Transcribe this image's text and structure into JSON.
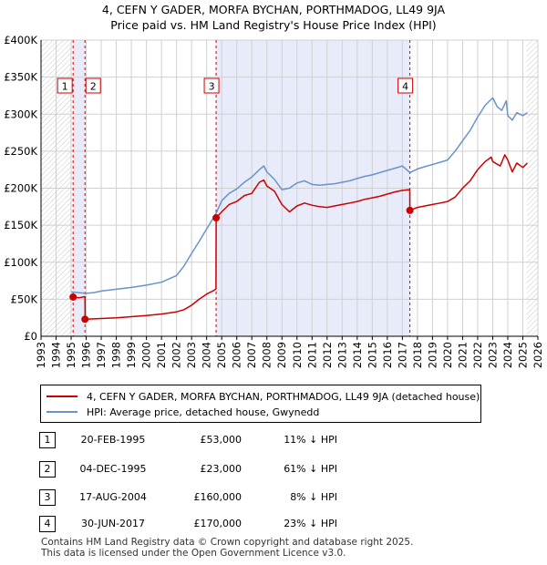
{
  "header": {
    "title": "4, CEFN Y GADER, MORFA BYCHAN, PORTHMADOG, LL49 9JA",
    "subtitle": "Price paid vs. HM Land Registry's House Price Index (HPI)"
  },
  "colors": {
    "property": "#cc0000",
    "hpi": "#6a93c9",
    "shade": "#e8ecfa",
    "grid": "#d0d0d0"
  },
  "chart_data": {
    "type": "line",
    "xlim": [
      1993,
      2026
    ],
    "ylim": [
      0,
      400000
    ],
    "x_ticks": [
      "1993",
      "1994",
      "1995",
      "1996",
      "1997",
      "1998",
      "1999",
      "2000",
      "2001",
      "2002",
      "2003",
      "2004",
      "2005",
      "2006",
      "2007",
      "2008",
      "2009",
      "2010",
      "2011",
      "2012",
      "2013",
      "2014",
      "2015",
      "2016",
      "2017",
      "2018",
      "2019",
      "2020",
      "2021",
      "2022",
      "2023",
      "2024",
      "2025",
      "2026"
    ],
    "y_ticks": [
      {
        "value": 0,
        "label": "£0"
      },
      {
        "value": 50000,
        "label": "£50K"
      },
      {
        "value": 100000,
        "label": "£100K"
      },
      {
        "value": 150000,
        "label": "£150K"
      },
      {
        "value": 200000,
        "label": "£200K"
      },
      {
        "value": 250000,
        "label": "£250K"
      },
      {
        "value": 300000,
        "label": "£300K"
      },
      {
        "value": 350000,
        "label": "£350K"
      },
      {
        "value": 400000,
        "label": "£400K"
      }
    ],
    "shaded_ranges": [
      [
        1995.13,
        1995.92
      ],
      [
        2004.63,
        2017.5
      ]
    ],
    "series": [
      {
        "name": "4, CEFN Y GADER, MORFA BYCHAN, PORTHMADOG, LL49 9JA (detached house)",
        "color": "#cc0000",
        "points": [
          [
            1995.13,
            53000
          ],
          [
            1995.5,
            52000
          ],
          [
            1995.92,
            53500
          ],
          [
            1995.93,
            23000
          ],
          [
            1996.5,
            23500
          ],
          [
            1997,
            24000
          ],
          [
            1998,
            25000
          ],
          [
            1999,
            26500
          ],
          [
            2000,
            28000
          ],
          [
            2001,
            30000
          ],
          [
            2002,
            33000
          ],
          [
            2002.5,
            36000
          ],
          [
            2003,
            42000
          ],
          [
            2003.5,
            50000
          ],
          [
            2004,
            57000
          ],
          [
            2004.5,
            62000
          ],
          [
            2004.62,
            64000
          ],
          [
            2004.63,
            160000
          ],
          [
            2005,
            168000
          ],
          [
            2005.5,
            178000
          ],
          [
            2006,
            182000
          ],
          [
            2006.5,
            190000
          ],
          [
            2007,
            193000
          ],
          [
            2007.5,
            208000
          ],
          [
            2007.8,
            211000
          ],
          [
            2008,
            203000
          ],
          [
            2008.5,
            196000
          ],
          [
            2009,
            178000
          ],
          [
            2009.5,
            168000
          ],
          [
            2010,
            176000
          ],
          [
            2010.5,
            180000
          ],
          [
            2011,
            177000
          ],
          [
            2011.5,
            175000
          ],
          [
            2012,
            174000
          ],
          [
            2012.5,
            176000
          ],
          [
            2013,
            178000
          ],
          [
            2013.5,
            180000
          ],
          [
            2014,
            182000
          ],
          [
            2014.5,
            185000
          ],
          [
            2015,
            187000
          ],
          [
            2015.5,
            189000
          ],
          [
            2016,
            192000
          ],
          [
            2016.5,
            195000
          ],
          [
            2017,
            197000
          ],
          [
            2017.49,
            198000
          ],
          [
            2017.5,
            170000
          ],
          [
            2018,
            174000
          ],
          [
            2018.5,
            176000
          ],
          [
            2019,
            178000
          ],
          [
            2019.5,
            180000
          ],
          [
            2020,
            182000
          ],
          [
            2020.5,
            188000
          ],
          [
            2021,
            200000
          ],
          [
            2021.5,
            210000
          ],
          [
            2022,
            225000
          ],
          [
            2022.5,
            236000
          ],
          [
            2022.9,
            242000
          ],
          [
            2023,
            236000
          ],
          [
            2023.5,
            230000
          ],
          [
            2023.8,
            245000
          ],
          [
            2024,
            238000
          ],
          [
            2024.3,
            222000
          ],
          [
            2024.6,
            234000
          ],
          [
            2025,
            228000
          ],
          [
            2025.3,
            234000
          ]
        ]
      },
      {
        "name": "HPI: Average price, detached house, Gwynedd",
        "color": "#6a93c9",
        "points": [
          [
            1995,
            60000
          ],
          [
            1995.5,
            59000
          ],
          [
            1996,
            58000
          ],
          [
            1996.5,
            59000
          ],
          [
            1997,
            61000
          ],
          [
            1998,
            63500
          ],
          [
            1999,
            66000
          ],
          [
            2000,
            69000
          ],
          [
            2001,
            73000
          ],
          [
            2002,
            82000
          ],
          [
            2002.5,
            95000
          ],
          [
            2003,
            112000
          ],
          [
            2003.5,
            128000
          ],
          [
            2004,
            145000
          ],
          [
            2004.6,
            165000
          ],
          [
            2005,
            183000
          ],
          [
            2005.5,
            193000
          ],
          [
            2006,
            199000
          ],
          [
            2006.5,
            208000
          ],
          [
            2007,
            215000
          ],
          [
            2007.5,
            225000
          ],
          [
            2007.8,
            230000
          ],
          [
            2008,
            222000
          ],
          [
            2008.5,
            212000
          ],
          [
            2009,
            198000
          ],
          [
            2009.5,
            200000
          ],
          [
            2010,
            207000
          ],
          [
            2010.5,
            210000
          ],
          [
            2011,
            205000
          ],
          [
            2011.5,
            204000
          ],
          [
            2012,
            205000
          ],
          [
            2012.5,
            206000
          ],
          [
            2013,
            208000
          ],
          [
            2013.5,
            210000
          ],
          [
            2014,
            213000
          ],
          [
            2014.5,
            216000
          ],
          [
            2015,
            218000
          ],
          [
            2015.5,
            221000
          ],
          [
            2016,
            224000
          ],
          [
            2016.5,
            227000
          ],
          [
            2017,
            230000
          ],
          [
            2017.5,
            221000
          ],
          [
            2018,
            226000
          ],
          [
            2018.5,
            229000
          ],
          [
            2019,
            232000
          ],
          [
            2019.5,
            235000
          ],
          [
            2020,
            238000
          ],
          [
            2020.5,
            250000
          ],
          [
            2021,
            264000
          ],
          [
            2021.5,
            278000
          ],
          [
            2022,
            296000
          ],
          [
            2022.5,
            312000
          ],
          [
            2023,
            322000
          ],
          [
            2023.3,
            310000
          ],
          [
            2023.6,
            305000
          ],
          [
            2023.9,
            318000
          ],
          [
            2024,
            298000
          ],
          [
            2024.3,
            292000
          ],
          [
            2024.6,
            302000
          ],
          [
            2025,
            298000
          ],
          [
            2025.3,
            302000
          ]
        ]
      }
    ],
    "markers": [
      {
        "id": "1",
        "x": 1995.13,
        "y": 53000
      },
      {
        "id": "2",
        "x": 1995.92,
        "y": 23000
      },
      {
        "id": "3",
        "x": 2004.63,
        "y": 160000
      },
      {
        "id": "4",
        "x": 2017.5,
        "y": 170000
      }
    ]
  },
  "legend": {
    "property_label": "4, CEFN Y GADER, MORFA BYCHAN, PORTHMADOG, LL49 9JA (detached house)",
    "hpi_label": "HPI: Average price, detached house, Gwynedd"
  },
  "transactions": [
    {
      "num": "1",
      "date": "20-FEB-1995",
      "price": "£53,000",
      "hpi": "11% ↓ HPI"
    },
    {
      "num": "2",
      "date": "04-DEC-1995",
      "price": "£23,000",
      "hpi": "61% ↓ HPI"
    },
    {
      "num": "3",
      "date": "17-AUG-2004",
      "price": "£160,000",
      "hpi": "8% ↓ HPI"
    },
    {
      "num": "4",
      "date": "30-JUN-2017",
      "price": "£170,000",
      "hpi": "23% ↓ HPI"
    }
  ],
  "footer": {
    "line1": "Contains HM Land Registry data © Crown copyright and database right 2025.",
    "line2": "This data is licensed under the Open Government Licence v3.0."
  }
}
